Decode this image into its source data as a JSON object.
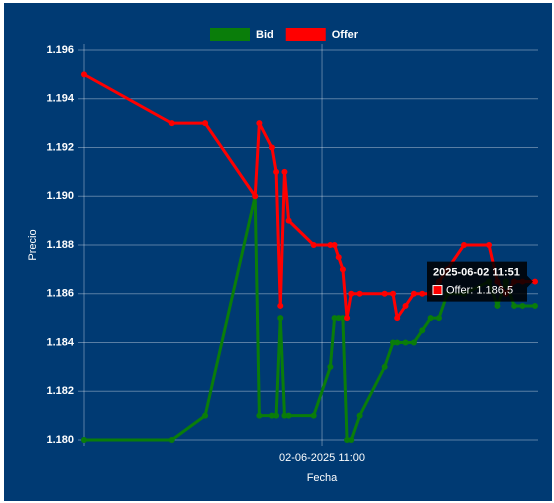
{
  "chart_data": {
    "type": "line",
    "x_label": "Fecha",
    "y_label": "Precio",
    "x": [
      "2025-06-02 10:03",
      "2025-06-02 10:24",
      "2025-06-02 10:32",
      "2025-06-02 10:44",
      "2025-06-02 10:45",
      "2025-06-02 10:48",
      "2025-06-02 10:49",
      "2025-06-02 10:50",
      "2025-06-02 10:51",
      "2025-06-02 10:52",
      "2025-06-02 10:58",
      "2025-06-02 11:02",
      "2025-06-02 11:03",
      "2025-06-02 11:04",
      "2025-06-02 11:05",
      "2025-06-02 11:06",
      "2025-06-02 11:07",
      "2025-06-02 11:09",
      "2025-06-02 11:15",
      "2025-06-02 11:17",
      "2025-06-02 11:18",
      "2025-06-02 11:20",
      "2025-06-02 11:22",
      "2025-06-02 11:24",
      "2025-06-02 11:26",
      "2025-06-02 11:28",
      "2025-06-02 11:30",
      "2025-06-02 11:34",
      "2025-06-02 11:40",
      "2025-06-02 11:42",
      "2025-06-02 11:44",
      "2025-06-02 11:46",
      "2025-06-02 11:48",
      "2025-06-02 11:51"
    ],
    "series": [
      {
        "name": "Bid",
        "color": "#0a7d0a",
        "values": [
          1.18,
          1.18,
          1.181,
          1.19,
          1.181,
          1.181,
          1.181,
          1.185,
          1.181,
          1.181,
          1.181,
          1.183,
          1.185,
          1.185,
          1.185,
          1.18,
          1.18,
          1.181,
          1.183,
          1.184,
          1.184,
          1.184,
          1.184,
          1.1845,
          1.185,
          1.185,
          1.186,
          1.186,
          1.1865,
          1.1855,
          1.1865,
          1.1855,
          1.1855,
          1.1855
        ]
      },
      {
        "name": "Offer",
        "color": "#ff0000",
        "values": [
          1.195,
          1.193,
          1.193,
          1.19,
          1.193,
          1.192,
          1.191,
          1.1855,
          1.191,
          1.189,
          1.188,
          1.188,
          1.188,
          1.1875,
          1.187,
          1.185,
          1.186,
          1.186,
          1.186,
          1.186,
          1.185,
          1.1855,
          1.186,
          1.186,
          1.186,
          1.1865,
          1.187,
          1.188,
          1.188,
          1.1865,
          1.186,
          1.1865,
          1.1865,
          1.1865
        ]
      }
    ],
    "xlim": [
      "2025-06-02 10:03",
      "2025-06-02 11:51"
    ],
    "xticks": [
      {
        "value": "2025-06-02 11:00",
        "label": "02-06-2025 11:00"
      }
    ],
    "ylim": [
      1.18,
      1.196
    ],
    "yticks": [
      {
        "value": 1.18,
        "label": "1.180"
      },
      1.182,
      1.184,
      1.186,
      1.188,
      {
        "value": 1.19,
        "label": "1.190"
      },
      1.192,
      1.194,
      1.196
    ],
    "grid": true,
    "legend": "top",
    "tooltip": {
      "title": "2025-06-02 11:51",
      "label": "Offer: 1.186,5"
    }
  }
}
